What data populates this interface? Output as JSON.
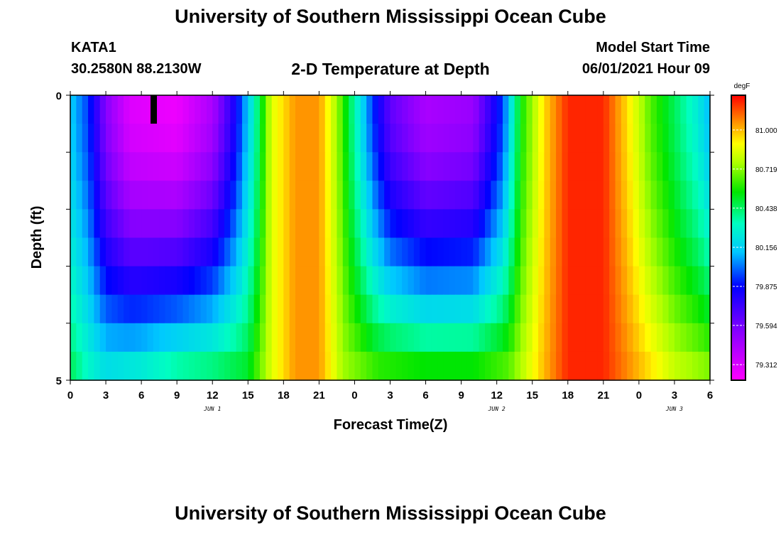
{
  "header": {
    "title": "University of Southern Mississippi Ocean Cube",
    "station": "KATA1",
    "coordinates": "30.2580N  88.2130W",
    "subtitle": "2-D Temperature at Depth",
    "start_label": "Model Start Time",
    "start_value": "06/01/2021 Hour 09"
  },
  "footer": {
    "title": "University of Southern Mississippi Ocean Cube"
  },
  "chart_data": {
    "type": "heatmap",
    "xlabel": "Forecast Time(Z)",
    "ylabel": "Depth (ft)",
    "x_range_hours": [
      0,
      54
    ],
    "x_tick_labels": [
      "0",
      "3",
      "6",
      "9",
      "12",
      "15",
      "18",
      "21",
      "0",
      "3",
      "6",
      "9",
      "12",
      "15",
      "18",
      "21",
      "0",
      "3",
      "6"
    ],
    "day_labels": [
      {
        "label": "JUN 1",
        "hour": 12
      },
      {
        "label": "JUN 2",
        "hour": 36
      },
      {
        "label": "JUN 3",
        "hour": 51
      }
    ],
    "y_range_ft": [
      0,
      5
    ],
    "y_tick_labels": [
      "0",
      "5"
    ],
    "depth_levels_ft": [
      0.25,
      0.75,
      1.25,
      1.75,
      2.25,
      2.75,
      3.25,
      3.75,
      4.25,
      4.75
    ],
    "colorbar": {
      "unit": "degF",
      "min": 79.2,
      "max": 81.25,
      "labels": [
        "81.000",
        "80.719",
        "80.438",
        "80.156",
        "79.875",
        "79.594",
        "79.312"
      ]
    },
    "surface_profile": [
      {
        "hour": 0,
        "value": 80.15
      },
      {
        "hour": 1.5,
        "value": 79.95
      },
      {
        "hour": 3,
        "value": 79.55
      },
      {
        "hour": 5,
        "value": 79.3
      },
      {
        "hour": 9,
        "value": 79.25
      },
      {
        "hour": 12,
        "value": 79.45
      },
      {
        "hour": 14,
        "value": 79.85
      },
      {
        "hour": 15.5,
        "value": 80.3
      },
      {
        "hour": 17,
        "value": 80.85
      },
      {
        "hour": 19,
        "value": 81.05
      },
      {
        "hour": 21,
        "value": 81.05
      },
      {
        "hour": 22.5,
        "value": 80.75
      },
      {
        "hour": 24,
        "value": 80.35
      },
      {
        "hour": 25.5,
        "value": 79.95
      },
      {
        "hour": 27,
        "value": 79.65
      },
      {
        "hour": 30,
        "value": 79.45
      },
      {
        "hour": 34,
        "value": 79.5
      },
      {
        "hour": 36.5,
        "value": 79.95
      },
      {
        "hour": 38,
        "value": 80.55
      },
      {
        "hour": 40,
        "value": 80.95
      },
      {
        "hour": 42,
        "value": 81.2
      },
      {
        "hour": 45,
        "value": 81.2
      },
      {
        "hour": 47,
        "value": 80.95
      },
      {
        "hour": 49,
        "value": 80.65
      },
      {
        "hour": 51,
        "value": 80.45
      },
      {
        "hour": 53,
        "value": 80.25
      },
      {
        "hour": 54,
        "value": 80.1
      }
    ],
    "bottom_profile": [
      {
        "hour": 0,
        "value": 80.45
      },
      {
        "hour": 1.5,
        "value": 80.3
      },
      {
        "hour": 3,
        "value": 80.2
      },
      {
        "hour": 6,
        "value": 80.25
      },
      {
        "hour": 9,
        "value": 80.35
      },
      {
        "hour": 12,
        "value": 80.4
      },
      {
        "hour": 15,
        "value": 80.5
      },
      {
        "hour": 17,
        "value": 80.85
      },
      {
        "hour": 19,
        "value": 81.05
      },
      {
        "hour": 21,
        "value": 81.05
      },
      {
        "hour": 23,
        "value": 80.75
      },
      {
        "hour": 26,
        "value": 80.6
      },
      {
        "hour": 30,
        "value": 80.55
      },
      {
        "hour": 34,
        "value": 80.55
      },
      {
        "hour": 37,
        "value": 80.65
      },
      {
        "hour": 40,
        "value": 81.0
      },
      {
        "hour": 42,
        "value": 81.2
      },
      {
        "hour": 45,
        "value": 81.2
      },
      {
        "hour": 48,
        "value": 81.0
      },
      {
        "hour": 51,
        "value": 80.8
      },
      {
        "hour": 54,
        "value": 80.7
      }
    ]
  }
}
